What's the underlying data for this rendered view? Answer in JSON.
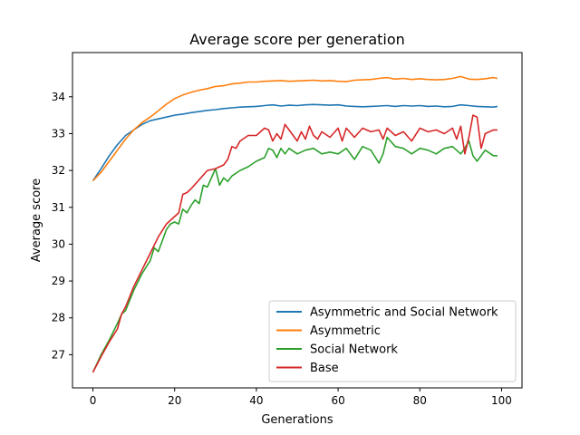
{
  "chart_data": {
    "type": "line",
    "title": "Average score per generation",
    "xlabel": "Generations",
    "ylabel": "Average score",
    "xlim": [
      -5,
      105
    ],
    "ylim": [
      26.1,
      35.2
    ],
    "xticks": [
      0,
      20,
      40,
      60,
      80,
      100
    ],
    "yticks": [
      27,
      28,
      29,
      30,
      31,
      32,
      33,
      34
    ],
    "grid": false,
    "legend_position": "lower-right",
    "series": [
      {
        "name": "Asymmetric and Social Network",
        "color": "#1f77b4",
        "x": [
          0,
          2,
          4,
          6,
          8,
          10,
          12,
          14,
          16,
          18,
          20,
          22,
          24,
          26,
          28,
          30,
          32,
          34,
          36,
          38,
          40,
          42,
          44,
          46,
          48,
          50,
          52,
          54,
          56,
          58,
          60,
          62,
          64,
          66,
          68,
          70,
          72,
          74,
          76,
          78,
          80,
          82,
          84,
          86,
          88,
          90,
          92,
          94,
          96,
          98,
          99
        ],
        "y": [
          31.72,
          32.05,
          32.4,
          32.7,
          32.95,
          33.1,
          33.25,
          33.35,
          33.4,
          33.45,
          33.5,
          33.53,
          33.57,
          33.6,
          33.63,
          33.65,
          33.68,
          33.7,
          33.72,
          33.73,
          33.74,
          33.76,
          33.78,
          33.75,
          33.77,
          33.76,
          33.78,
          33.79,
          33.78,
          33.77,
          33.78,
          33.75,
          33.74,
          33.73,
          33.74,
          33.75,
          33.76,
          33.74,
          33.76,
          33.75,
          33.76,
          33.74,
          33.75,
          33.73,
          33.74,
          33.78,
          33.76,
          33.74,
          33.73,
          33.72,
          33.74
        ]
      },
      {
        "name": "Asymmetric",
        "color": "#ff7f0e",
        "x": [
          0,
          2,
          4,
          6,
          8,
          10,
          12,
          14,
          16,
          18,
          20,
          22,
          24,
          26,
          28,
          30,
          32,
          34,
          36,
          38,
          40,
          42,
          44,
          46,
          48,
          50,
          52,
          54,
          56,
          58,
          60,
          62,
          64,
          66,
          68,
          70,
          72,
          74,
          76,
          78,
          80,
          82,
          84,
          86,
          88,
          90,
          92,
          94,
          96,
          98,
          99
        ],
        "y": [
          31.72,
          31.95,
          32.25,
          32.55,
          32.85,
          33.1,
          33.3,
          33.45,
          33.62,
          33.8,
          33.95,
          34.05,
          34.12,
          34.18,
          34.22,
          34.28,
          34.3,
          34.35,
          34.37,
          34.4,
          34.4,
          34.42,
          34.43,
          34.44,
          34.42,
          34.43,
          34.44,
          34.45,
          34.43,
          34.44,
          34.42,
          34.41,
          34.45,
          34.46,
          34.47,
          34.5,
          34.52,
          34.48,
          34.5,
          34.47,
          34.49,
          34.47,
          34.46,
          34.47,
          34.5,
          34.55,
          34.48,
          34.47,
          34.49,
          34.52,
          34.5
        ]
      },
      {
        "name": "Social Network",
        "color": "#2ca02c",
        "x": [
          0,
          2,
          4,
          6,
          7,
          8,
          10,
          12,
          14,
          15,
          16,
          18,
          19,
          20,
          21,
          22,
          23,
          24,
          25,
          26,
          27,
          28,
          29,
          30,
          31,
          32,
          33,
          34,
          36,
          38,
          40,
          42,
          43,
          44,
          45,
          46,
          47,
          48,
          50,
          52,
          54,
          56,
          58,
          60,
          62,
          64,
          66,
          68,
          70,
          71,
          72,
          74,
          76,
          78,
          80,
          82,
          84,
          86,
          88,
          90,
          91,
          92,
          93,
          94,
          96,
          98,
          99
        ],
        "y": [
          26.52,
          27.0,
          27.4,
          27.85,
          28.1,
          28.2,
          28.75,
          29.2,
          29.55,
          29.9,
          29.8,
          30.4,
          30.55,
          30.6,
          30.55,
          30.95,
          30.85,
          31.05,
          31.2,
          31.1,
          31.6,
          31.55,
          31.8,
          32.05,
          31.6,
          31.8,
          31.7,
          31.85,
          32.0,
          32.1,
          32.25,
          32.35,
          32.6,
          32.55,
          32.35,
          32.6,
          32.45,
          32.6,
          32.45,
          32.55,
          32.6,
          32.45,
          32.5,
          32.45,
          32.6,
          32.3,
          32.65,
          32.55,
          32.2,
          32.45,
          32.9,
          32.65,
          32.6,
          32.45,
          32.6,
          32.55,
          32.45,
          32.6,
          32.65,
          32.45,
          32.6,
          32.8,
          32.4,
          32.25,
          32.55,
          32.4,
          32.4
        ]
      },
      {
        "name": "Base",
        "color": "#d62728",
        "x": [
          0,
          2,
          4,
          6,
          7,
          8,
          10,
          12,
          14,
          16,
          18,
          20,
          21,
          22,
          23,
          24,
          26,
          28,
          30,
          31,
          32,
          33,
          34,
          35,
          36,
          38,
          40,
          41,
          42,
          43,
          44,
          45,
          46,
          47,
          48,
          50,
          51,
          52,
          53,
          54,
          55,
          56,
          58,
          60,
          61,
          62,
          64,
          66,
          68,
          70,
          71,
          72,
          74,
          76,
          78,
          80,
          82,
          84,
          86,
          88,
          89,
          90,
          91,
          92,
          93,
          94,
          95,
          96,
          98,
          99
        ],
        "y": [
          26.52,
          26.95,
          27.35,
          27.7,
          28.1,
          28.3,
          28.85,
          29.3,
          29.75,
          30.2,
          30.55,
          30.75,
          30.85,
          31.35,
          31.4,
          31.5,
          31.75,
          32.0,
          32.05,
          32.1,
          32.15,
          32.3,
          32.65,
          32.6,
          32.8,
          32.95,
          32.95,
          33.05,
          33.15,
          33.1,
          32.8,
          33.0,
          32.85,
          33.25,
          33.1,
          32.8,
          33.05,
          32.85,
          33.2,
          32.95,
          32.85,
          33.05,
          32.9,
          33.15,
          32.8,
          33.15,
          32.9,
          33.15,
          33.05,
          33.1,
          32.85,
          33.15,
          32.95,
          33.05,
          32.8,
          33.15,
          33.05,
          33.1,
          33.0,
          33.15,
          32.85,
          33.2,
          32.45,
          32.9,
          33.5,
          33.45,
          32.6,
          33.0,
          33.1,
          33.1
        ]
      }
    ]
  }
}
